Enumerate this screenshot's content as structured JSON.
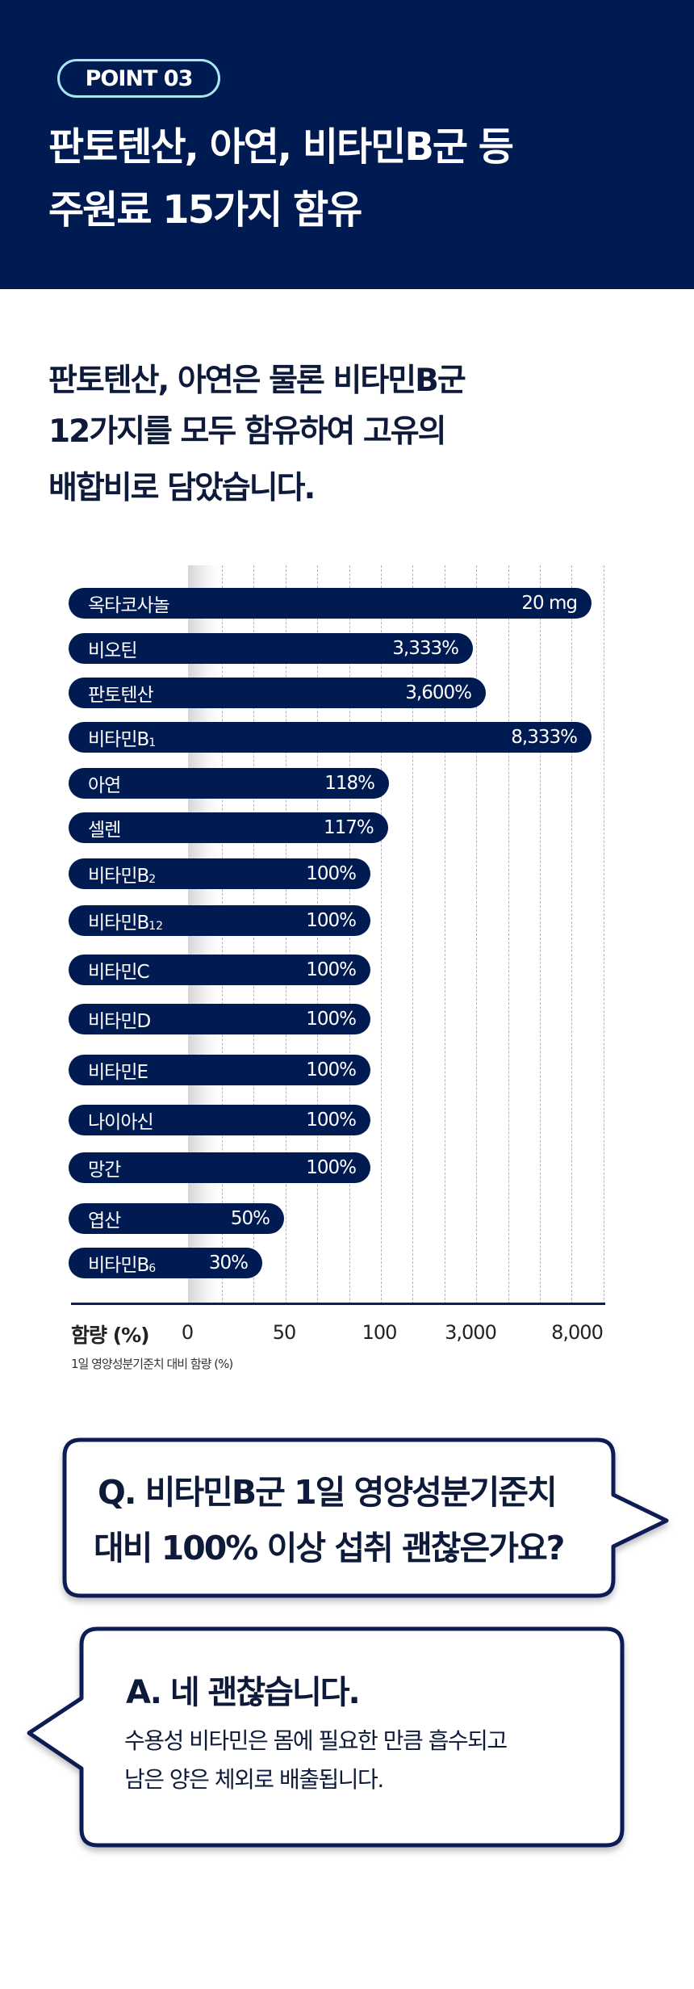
{
  "header": {
    "badge": "POINT 03",
    "title_lines": [
      "판토텐산, 아연, 비타민B군 등",
      "주원료 15가지 함유"
    ]
  },
  "subtitle_lines": [
    "판토텐산, 아연은 물론 비타민B군",
    "12가지를 모두 함유하여 고유의",
    "배합비로 담았습니다."
  ],
  "colors": {
    "navy": "#001a52",
    "badge_border": "#a8e6f0"
  },
  "chart_data": {
    "type": "bar",
    "orientation": "horizontal",
    "ylabel": "함량 (%)",
    "note": "1일 영양성분기준치 대비 함량 (%)",
    "x_ticks": [
      "0",
      "50",
      "100",
      "3,000",
      "8,000"
    ],
    "x_tick_values": [
      0,
      50,
      100,
      3000,
      8000
    ],
    "grid": true,
    "bars": [
      {
        "label": "옥타코사놀",
        "sub": "",
        "value_text": "20 mg",
        "value": 20,
        "unit": "mg"
      },
      {
        "label": "비오틴",
        "sub": "",
        "value_text": "3,333%",
        "value": 3333,
        "unit": "%"
      },
      {
        "label": "판토텐산",
        "sub": "",
        "value_text": "3,600%",
        "value": 3600,
        "unit": "%"
      },
      {
        "label": "비타민B",
        "sub": "1",
        "value_text": "8,333%",
        "value": 8333,
        "unit": "%"
      },
      {
        "label": "아연",
        "sub": "",
        "value_text": "118%",
        "value": 118,
        "unit": "%"
      },
      {
        "label": "셀렌",
        "sub": "",
        "value_text": "117%",
        "value": 117,
        "unit": "%"
      },
      {
        "label": "비타민B",
        "sub": "2",
        "value_text": "100%",
        "value": 100,
        "unit": "%"
      },
      {
        "label": "비타민B",
        "sub": "12",
        "value_text": "100%",
        "value": 100,
        "unit": "%"
      },
      {
        "label": "비타민C",
        "sub": "",
        "value_text": "100%",
        "value": 100,
        "unit": "%"
      },
      {
        "label": "비타민D",
        "sub": "",
        "value_text": "100%",
        "value": 100,
        "unit": "%"
      },
      {
        "label": "비타민E",
        "sub": "",
        "value_text": "100%",
        "value": 100,
        "unit": "%"
      },
      {
        "label": "나이아신",
        "sub": "",
        "value_text": "100%",
        "value": 100,
        "unit": "%"
      },
      {
        "label": "망간",
        "sub": "",
        "value_text": "100%",
        "value": 100,
        "unit": "%"
      },
      {
        "label": "엽산",
        "sub": "",
        "value_text": "50%",
        "value": 50,
        "unit": "%"
      },
      {
        "label": "비타민B",
        "sub": "6",
        "value_text": "30%",
        "value": 30,
        "unit": "%"
      }
    ]
  },
  "faq": {
    "question_lines": [
      "Q.  비타민B군 1일 영양성분기준치",
      "대비 100% 이상 섭취 괜찮은가요?"
    ],
    "answer_title": "A. 네 괜찮습니다.",
    "answer_lines": [
      "수용성 비타민은 몸에 필요한 만큼 흡수되고",
      "남은 양은 체외로 배출됩니다."
    ]
  }
}
